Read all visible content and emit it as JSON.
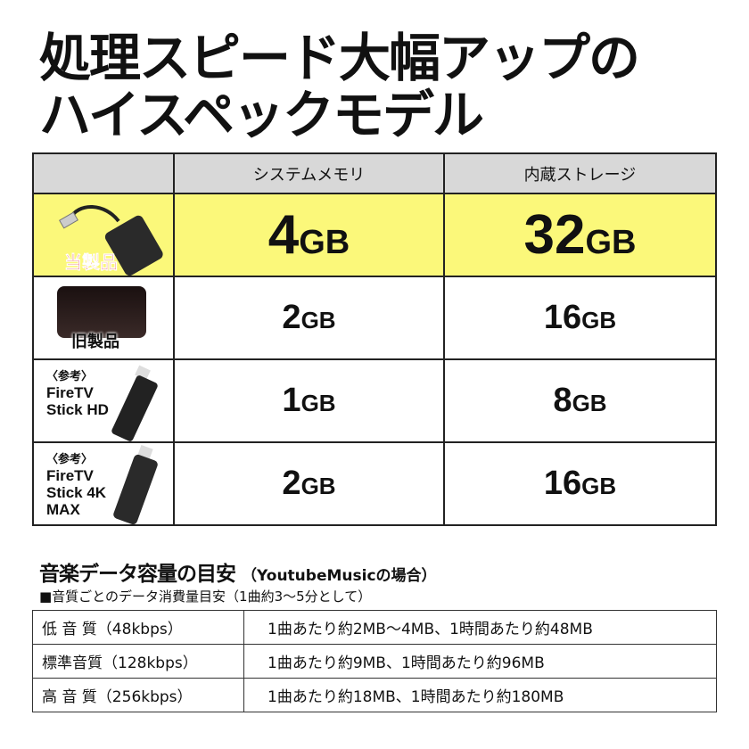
{
  "headline": {
    "line1": "処理スピード大幅アップの",
    "line2": "ハイスペックモデル"
  },
  "spec_table": {
    "headers": [
      "",
      "システムメモリ",
      "内蔵ストレージ"
    ],
    "rows": [
      {
        "label": "当製品",
        "image": "usb-hdmi-adapter",
        "memory": "4",
        "memory_unit": "GB",
        "storage": "32",
        "storage_unit": "GB",
        "highlight": "#fbf87a"
      },
      {
        "label": "旧製品",
        "image": "black-box-device",
        "memory": "2",
        "memory_unit": "GB",
        "storage": "16",
        "storage_unit": "GB"
      },
      {
        "note": "〈参考〉",
        "label_line1": "FireTV",
        "label_line2": "Stick HD",
        "image": "fire-tv-stick",
        "memory": "1",
        "memory_unit": "GB",
        "storage": "8",
        "storage_unit": "GB"
      },
      {
        "note": "〈参考〉",
        "label_line1": "FireTV",
        "label_line2": "Stick 4K",
        "label_line3": "MAX",
        "image": "fire-tv-stick",
        "memory": "2",
        "memory_unit": "GB",
        "storage": "16",
        "storage_unit": "GB"
      }
    ]
  },
  "music": {
    "title": "音楽データ容量の目安",
    "title_note": "（YoutubeMusicの場合）",
    "subtitle": "■音質ごとのデータ消費量目安（1曲約3〜5分として）",
    "rows": [
      {
        "quality": "低 音 質（48kbps）",
        "usage": "1曲あたり約2MB〜4MB、1時間あたり約48MB"
      },
      {
        "quality": "標準音質（128kbps）",
        "usage": "1曲あたり約9MB、1時間あたり約96MB"
      },
      {
        "quality": "高 音 質（256kbps）",
        "usage": "1曲あたり約18MB、1時間あたり約180MB"
      }
    ]
  }
}
